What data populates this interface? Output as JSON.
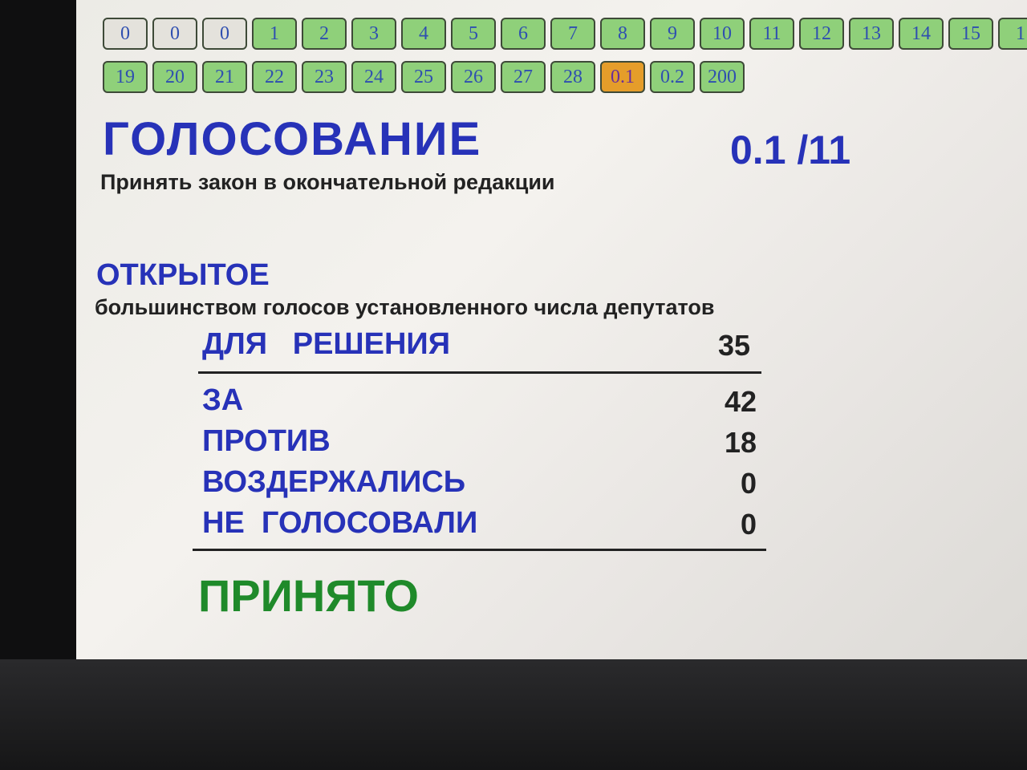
{
  "buttons_row1": [
    {
      "label": "0",
      "state": "gray"
    },
    {
      "label": "0",
      "state": "gray"
    },
    {
      "label": "0",
      "state": "gray"
    },
    {
      "label": "1"
    },
    {
      "label": "2"
    },
    {
      "label": "3"
    },
    {
      "label": "4"
    },
    {
      "label": "5"
    },
    {
      "label": "6"
    },
    {
      "label": "7"
    },
    {
      "label": "8"
    },
    {
      "label": "9"
    },
    {
      "label": "10"
    },
    {
      "label": "11"
    },
    {
      "label": "12"
    },
    {
      "label": "13"
    },
    {
      "label": "14"
    },
    {
      "label": "15"
    },
    {
      "label": "1"
    }
  ],
  "buttons_row2": [
    {
      "label": "19"
    },
    {
      "label": "20"
    },
    {
      "label": "21"
    },
    {
      "label": "22"
    },
    {
      "label": "23"
    },
    {
      "label": "24"
    },
    {
      "label": "25"
    },
    {
      "label": "26"
    },
    {
      "label": "27"
    },
    {
      "label": "28"
    },
    {
      "label": "0.1",
      "state": "selected"
    },
    {
      "label": "0.2"
    },
    {
      "label": "200"
    }
  ],
  "title": "ГОЛОСОВАНИЕ",
  "subtitle": "Принять закон в окончательной редакции",
  "counter": "0.1 /11",
  "vote_type": "ОТКРЫТОЕ",
  "vote_rule": "большинством голосов установленного числа депутатов",
  "required": {
    "label": "ДЛЯ   РЕШЕНИЯ",
    "value": "35"
  },
  "results": [
    {
      "label": "ЗА",
      "value": "42"
    },
    {
      "label": "ПРОТИВ",
      "value": "18"
    },
    {
      "label": "ВОЗДЕРЖАЛИСЬ",
      "value": "0"
    },
    {
      "label": "НЕ  ГОЛОСОВАЛИ",
      "value": "0"
    }
  ],
  "outcome": "ПРИНЯТО",
  "colors": {
    "button": "#8fd07a",
    "selected": "#e59d2a",
    "text_blue": "#2732b8",
    "outcome_green": "#1f8a2a"
  }
}
